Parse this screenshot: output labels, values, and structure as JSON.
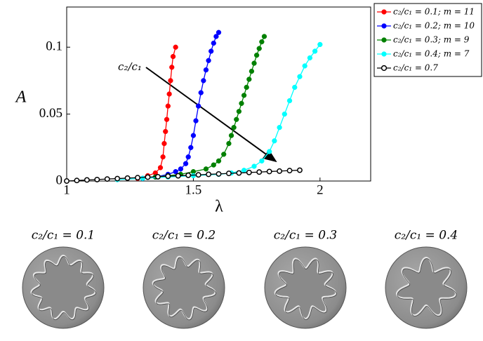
{
  "chart_data": {
    "type": "line",
    "xlabel": "λ",
    "ylabel": "A",
    "annotation": "c₂/c₁",
    "xlim": [
      1,
      2.2
    ],
    "xticks": [
      1,
      1.5,
      2
    ],
    "ylim": [
      0,
      0.13
    ],
    "yticks": [
      0,
      0.05,
      0.1
    ],
    "series": [
      {
        "name": "c₂/c₁ = 0.1; m = 11",
        "color": "#ff0000",
        "filled": true,
        "x": [
          1.28,
          1.32,
          1.35,
          1.37,
          1.38,
          1.385,
          1.39,
          1.395,
          1.4,
          1.405,
          1.41,
          1.415,
          1.42,
          1.43
        ],
        "values": [
          0.002,
          0.004,
          0.006,
          0.01,
          0.018,
          0.028,
          0.037,
          0.046,
          0.056,
          0.065,
          0.075,
          0.085,
          0.093,
          0.1
        ]
      },
      {
        "name": "c₂/c₁ = 0.2; m = 10",
        "color": "#0000ff",
        "filled": true,
        "x": [
          1.3,
          1.35,
          1.4,
          1.43,
          1.45,
          1.47,
          1.48,
          1.49,
          1.5,
          1.51,
          1.52,
          1.53,
          1.54,
          1.55,
          1.56,
          1.57,
          1.58,
          1.59,
          1.6
        ],
        "values": [
          0.002,
          0.003,
          0.005,
          0.007,
          0.009,
          0.013,
          0.018,
          0.025,
          0.034,
          0.045,
          0.056,
          0.066,
          0.075,
          0.083,
          0.09,
          0.097,
          0.103,
          0.108,
          0.111
        ]
      },
      {
        "name": "c₂/c₁ = 0.3; m = 9",
        "color": "#008000",
        "filled": true,
        "x": [
          1.35,
          1.4,
          1.45,
          1.5,
          1.55,
          1.58,
          1.6,
          1.62,
          1.64,
          1.65,
          1.66,
          1.67,
          1.68,
          1.69,
          1.7,
          1.71,
          1.72,
          1.73,
          1.74,
          1.75,
          1.76,
          1.77,
          1.78
        ],
        "values": [
          0.003,
          0.004,
          0.005,
          0.007,
          0.009,
          0.012,
          0.015,
          0.02,
          0.028,
          0.034,
          0.04,
          0.046,
          0.052,
          0.058,
          0.064,
          0.07,
          0.076,
          0.082,
          0.088,
          0.094,
          0.099,
          0.104,
          0.108
        ]
      },
      {
        "name": "c₂/c₁ = 0.4; m = 7",
        "color": "#00ffff",
        "filled": true,
        "x": [
          1.2,
          1.3,
          1.4,
          1.5,
          1.6,
          1.65,
          1.7,
          1.74,
          1.77,
          1.8,
          1.82,
          1.84,
          1.86,
          1.88,
          1.9,
          1.92,
          1.94,
          1.96,
          1.98,
          2.0
        ],
        "values": [
          0.001,
          0.002,
          0.003,
          0.004,
          0.005,
          0.006,
          0.008,
          0.011,
          0.015,
          0.022,
          0.03,
          0.04,
          0.05,
          0.06,
          0.07,
          0.078,
          0.086,
          0.092,
          0.097,
          0.102
        ]
      },
      {
        "name": "c₂/c₁ = 0.7",
        "color": "#000000",
        "filled": false,
        "x": [
          1.0,
          1.04,
          1.08,
          1.12,
          1.16,
          1.2,
          1.24,
          1.28,
          1.32,
          1.36,
          1.4,
          1.44,
          1.48,
          1.52,
          1.56,
          1.6,
          1.64,
          1.68,
          1.72,
          1.76,
          1.8,
          1.84,
          1.88,
          1.92
        ],
        "values": [
          0,
          0.0004,
          0.0008,
          0.0011,
          0.0015,
          0.0018,
          0.0022,
          0.0025,
          0.0029,
          0.0032,
          0.0036,
          0.0039,
          0.0043,
          0.0046,
          0.005,
          0.0053,
          0.0057,
          0.006,
          0.0064,
          0.0067,
          0.0071,
          0.0074,
          0.0078,
          0.0081
        ]
      }
    ]
  },
  "panels": [
    {
      "caption": "c₂/c₁ = 0.1"
    },
    {
      "caption": "c₂/c₁ = 0.2"
    },
    {
      "caption": "c₂/c₁ = 0.3"
    },
    {
      "caption": "c₂/c₁ = 0.4"
    }
  ]
}
